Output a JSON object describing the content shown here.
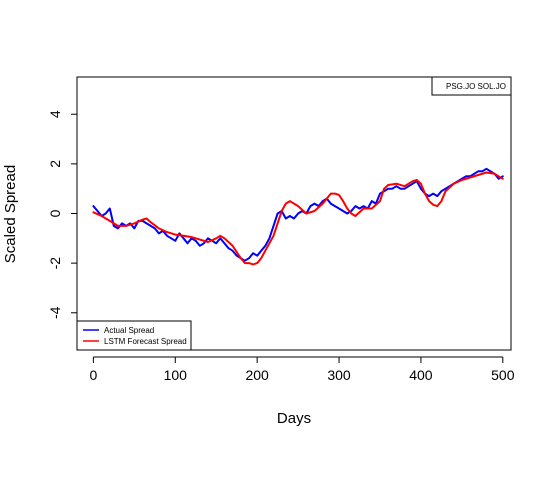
{
  "chart_data": {
    "type": "line",
    "xlabel": "Days",
    "ylabel": "Scaled Spread",
    "xlim": [
      -20,
      510
    ],
    "ylim": [
      -5.5,
      5.5
    ],
    "x_ticks": [
      0,
      100,
      200,
      300,
      400,
      500
    ],
    "y_ticks": [
      -4,
      -2,
      0,
      2,
      4
    ],
    "annotation": "PSG.JO SOL.JO",
    "legend_position": "bottom-left",
    "series": [
      {
        "name": "Actual Spread",
        "color": "#0000ff",
        "x": [
          0,
          5,
          10,
          15,
          20,
          25,
          30,
          35,
          40,
          45,
          50,
          55,
          60,
          65,
          70,
          75,
          80,
          85,
          90,
          95,
          100,
          105,
          110,
          115,
          120,
          125,
          130,
          135,
          140,
          145,
          150,
          155,
          160,
          165,
          170,
          175,
          180,
          185,
          190,
          195,
          200,
          205,
          210,
          215,
          220,
          225,
          230,
          235,
          240,
          245,
          250,
          255,
          260,
          265,
          270,
          275,
          280,
          285,
          290,
          295,
          300,
          305,
          310,
          315,
          320,
          325,
          330,
          335,
          340,
          345,
          350,
          355,
          360,
          365,
          370,
          375,
          380,
          385,
          390,
          395,
          400,
          405,
          410,
          415,
          420,
          425,
          430,
          435,
          440,
          445,
          450,
          455,
          460,
          465,
          470,
          475,
          480,
          485,
          490,
          495,
          500
        ],
        "values": [
          0.3,
          0.1,
          -0.1,
          0.0,
          0.2,
          -0.5,
          -0.6,
          -0.4,
          -0.5,
          -0.4,
          -0.6,
          -0.3,
          -0.3,
          -0.4,
          -0.5,
          -0.6,
          -0.8,
          -0.7,
          -0.9,
          -1.0,
          -1.1,
          -0.8,
          -1.0,
          -1.2,
          -1.0,
          -1.1,
          -1.3,
          -1.2,
          -1.0,
          -1.1,
          -1.2,
          -1.0,
          -1.2,
          -1.4,
          -1.5,
          -1.7,
          -1.8,
          -1.9,
          -1.8,
          -1.6,
          -1.7,
          -1.5,
          -1.3,
          -1.0,
          -0.5,
          0.0,
          0.1,
          -0.2,
          -0.1,
          -0.2,
          0.0,
          0.1,
          0.0,
          0.3,
          0.4,
          0.3,
          0.5,
          0.6,
          0.4,
          0.3,
          0.2,
          0.1,
          0.0,
          0.1,
          0.3,
          0.2,
          0.3,
          0.2,
          0.5,
          0.4,
          0.8,
          0.9,
          1.0,
          1.0,
          1.1,
          1.0,
          1.0,
          1.1,
          1.2,
          1.3,
          1.0,
          0.8,
          0.7,
          0.8,
          0.7,
          0.9,
          1.0,
          1.1,
          1.2,
          1.3,
          1.4,
          1.5,
          1.5,
          1.6,
          1.7,
          1.7,
          1.8,
          1.7,
          1.6,
          1.4,
          1.5
        ]
      },
      {
        "name": "LSTM Forecast Spread",
        "color": "#ff0000",
        "x": [
          0,
          10,
          20,
          30,
          40,
          50,
          60,
          65,
          70,
          80,
          90,
          100,
          110,
          120,
          130,
          140,
          150,
          155,
          160,
          170,
          180,
          185,
          190,
          195,
          200,
          205,
          210,
          220,
          230,
          235,
          240,
          250,
          260,
          270,
          280,
          285,
          290,
          295,
          300,
          305,
          310,
          315,
          320,
          330,
          340,
          350,
          355,
          360,
          370,
          380,
          390,
          395,
          400,
          405,
          410,
          415,
          420,
          425,
          430,
          440,
          450,
          460,
          470,
          480,
          490,
          500
        ],
        "values": [
          0.05,
          -0.1,
          -0.3,
          -0.5,
          -0.5,
          -0.4,
          -0.25,
          -0.2,
          -0.35,
          -0.6,
          -0.75,
          -0.85,
          -0.9,
          -0.95,
          -1.05,
          -1.15,
          -1.0,
          -0.9,
          -1.0,
          -1.3,
          -1.8,
          -2.0,
          -2.0,
          -2.05,
          -2.0,
          -1.8,
          -1.5,
          -0.9,
          0.1,
          0.4,
          0.5,
          0.3,
          0.0,
          0.1,
          0.4,
          0.6,
          0.8,
          0.8,
          0.75,
          0.5,
          0.2,
          0.0,
          -0.1,
          0.2,
          0.2,
          0.5,
          1.0,
          1.15,
          1.2,
          1.1,
          1.3,
          1.35,
          1.2,
          0.8,
          0.5,
          0.35,
          0.3,
          0.5,
          0.9,
          1.2,
          1.35,
          1.45,
          1.55,
          1.65,
          1.6,
          1.4
        ]
      }
    ]
  }
}
